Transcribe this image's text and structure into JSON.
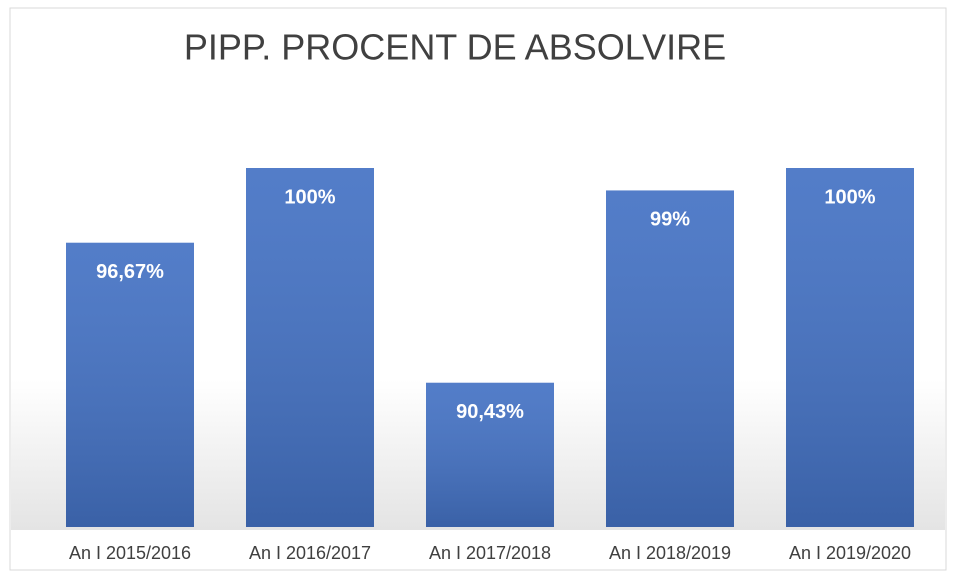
{
  "chart_data": {
    "type": "bar",
    "title": "PIPP. PROCENT DE ABSOLVIRE",
    "categories": [
      "An I 2015/2016",
      "An I 2016/2017",
      "An I 2017/2018",
      "An I 2018/2019",
      "An I 2019/2020"
    ],
    "values": [
      96.67,
      100,
      90.43,
      99,
      100
    ],
    "value_labels": [
      "96,67%",
      "100%",
      "90,43%",
      "99%",
      "100%"
    ],
    "color": "#4472c4",
    "ylim": [
      84,
      100
    ]
  }
}
